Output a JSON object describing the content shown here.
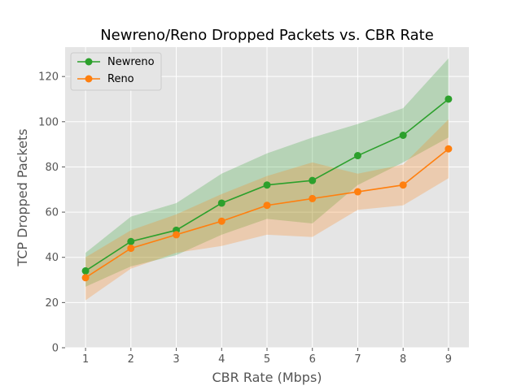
{
  "chart_data": {
    "type": "line",
    "title": "Newreno/Reno Dropped Packets vs. CBR Rate",
    "xlabel": "CBR Rate (Mbps)",
    "ylabel": "TCP Dropped Packets",
    "x": [
      1,
      2,
      3,
      4,
      5,
      6,
      7,
      8,
      9
    ],
    "xlim": [
      0.55,
      9.45
    ],
    "ylim": [
      0,
      133
    ],
    "xticks": [
      1,
      2,
      3,
      4,
      5,
      6,
      7,
      8,
      9
    ],
    "yticks": [
      0,
      20,
      40,
      60,
      80,
      100,
      120
    ],
    "grid": true,
    "legend_position": "top-left",
    "series": [
      {
        "name": "Newreno",
        "color": "#2ca02c",
        "values": [
          34,
          47,
          52,
          64,
          72,
          74,
          85,
          94,
          110
        ],
        "lower": [
          27,
          36,
          41,
          50,
          57,
          55,
          72,
          82,
          93
        ],
        "upper": [
          42,
          58,
          64,
          77,
          86,
          93,
          99,
          106,
          128
        ]
      },
      {
        "name": "Reno",
        "color": "#ff7f0e",
        "values": [
          31,
          44,
          50,
          56,
          63,
          66,
          69,
          72,
          88
        ],
        "lower": [
          21,
          35,
          42,
          45,
          50,
          49,
          61,
          63,
          75
        ],
        "upper": [
          40,
          52,
          59,
          68,
          76,
          82,
          77,
          81,
          101
        ]
      }
    ]
  }
}
